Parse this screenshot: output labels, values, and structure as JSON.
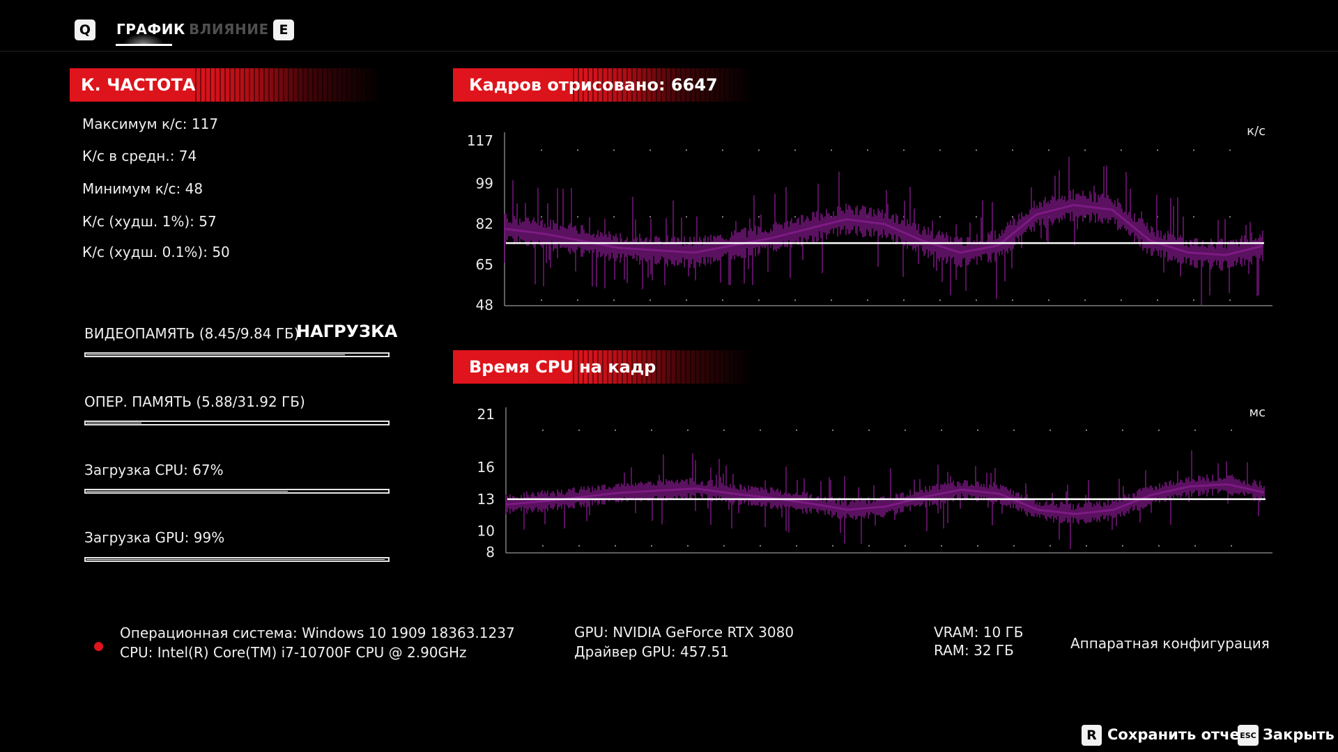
{
  "tabs": {
    "left_key": "Q",
    "right_key": "E",
    "items": [
      {
        "label": "ГРАФИК",
        "active": true
      },
      {
        "label": "ВЛИЯНИЕ",
        "active": false
      }
    ]
  },
  "framerate": {
    "title": "К. ЧАСТОТА",
    "stats": [
      "Максимум к/с: 117",
      "К/с в средн.: 74",
      "Минимум к/с: 48",
      "К/с (худш. 1%): 57",
      "К/с (худш. 0.1%): 50"
    ]
  },
  "load": {
    "title": "НАГРУЗКА",
    "items": [
      {
        "label": "ВИДЕОПАМЯТЬ (8.45/9.84 ГБ)",
        "fraction": 0.858
      },
      {
        "label": "ОПЕР. ПАМЯТЬ (5.88/31.92 ГБ)",
        "fraction": 0.184
      },
      {
        "label": "Загрузка CPU: 67%",
        "fraction": 0.67
      },
      {
        "label": "Загрузка GPU: 99%",
        "fraction": 0.99
      }
    ]
  },
  "chart_data": [
    {
      "type": "line",
      "title": "Кадров отрисовано: 6647",
      "unit": "к/с",
      "y_ticks": [
        117,
        99,
        82,
        65,
        48
      ],
      "ylim": [
        48,
        117
      ],
      "average_line": 74,
      "x": [
        0,
        0.05,
        0.1,
        0.15,
        0.2,
        0.25,
        0.3,
        0.35,
        0.4,
        0.45,
        0.5,
        0.55,
        0.6,
        0.65,
        0.7,
        0.75,
        0.8,
        0.85,
        0.9,
        0.95,
        1.0
      ],
      "series": [
        {
          "color": "#6a1470",
          "values": [
            80,
            78,
            75,
            72,
            71,
            70,
            73,
            76,
            80,
            84,
            82,
            75,
            70,
            73,
            86,
            90,
            88,
            75,
            70,
            69,
            73
          ]
        }
      ],
      "grid": "dotted"
    },
    {
      "type": "line",
      "title": "Время CPU на кадр",
      "unit": "мс",
      "y_ticks": [
        21,
        16,
        13,
        10,
        8
      ],
      "ylim": [
        8,
        21
      ],
      "average_line": 13,
      "x": [
        0,
        0.05,
        0.1,
        0.15,
        0.2,
        0.25,
        0.3,
        0.35,
        0.4,
        0.45,
        0.5,
        0.55,
        0.6,
        0.65,
        0.7,
        0.75,
        0.8,
        0.85,
        0.9,
        0.95,
        1.0
      ],
      "series": [
        {
          "color": "#6a1470",
          "values": [
            12.5,
            12.8,
            13.2,
            13.6,
            13.8,
            14.0,
            13.5,
            13.1,
            12.6,
            12.0,
            12.3,
            13.2,
            13.9,
            13.5,
            12.0,
            11.6,
            12.0,
            13.4,
            14.2,
            14.4,
            13.6
          ]
        }
      ],
      "grid": "dotted"
    }
  ],
  "hardware": {
    "os": "Операционная система: Windows 10 1909 18363.1237",
    "cpu": "CPU: Intel(R) Core(TM) i7-10700F CPU @ 2.90GHz",
    "gpu": "GPU: NVIDIA GeForce RTX 3080",
    "driver": "Драйвер GPU: 457.51",
    "vram": "VRAM: 10 ГБ",
    "ram": "RAM: 32 ГБ",
    "config_label": "Аппаратная конфигурация"
  },
  "footer": {
    "save_key": "R",
    "save_label": "Сохранить отчет",
    "close_key": "ESC",
    "close_label": "Закрыть"
  },
  "colors": {
    "accent_red": "#e0141c",
    "series_purple": "#6a1470",
    "background": "#000000"
  }
}
